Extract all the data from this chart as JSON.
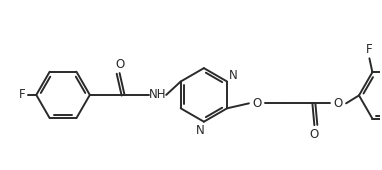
{
  "bg_color": "#ffffff",
  "line_color": "#2a2a2a",
  "line_width": 1.4,
  "font_size": 8.5,
  "figsize": [
    3.82,
    1.7
  ],
  "dpi": 100,
  "xlim": [
    0,
    382
  ],
  "ylim": [
    0,
    170
  ]
}
